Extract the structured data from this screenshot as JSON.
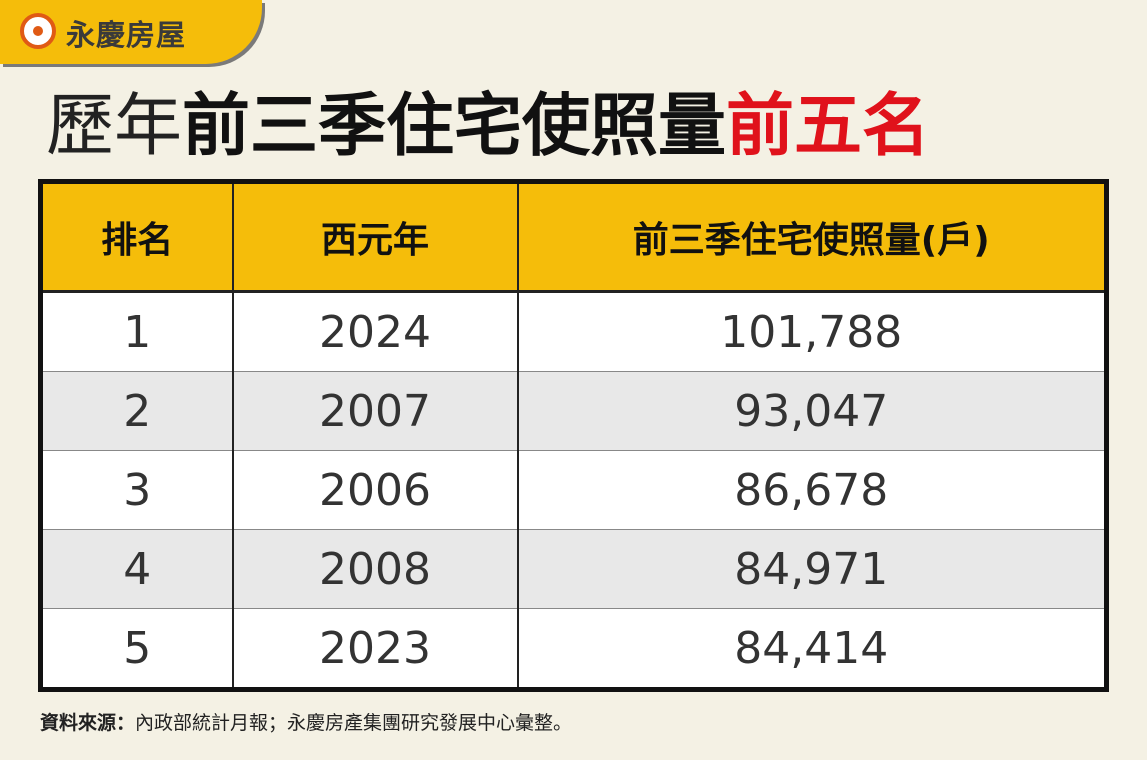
{
  "brand": {
    "name": "永慶房屋",
    "logo_icon": "ring-logo-icon"
  },
  "headline": {
    "part1": "歷年",
    "part2": "前三季住宅使照量",
    "part3": "前五名"
  },
  "colors": {
    "accent": "#f5bd0a",
    "highlight": "#e0121b",
    "logo": "#e05a14"
  },
  "chart_data": {
    "type": "table",
    "title": "歷年前三季住宅使照量前五名",
    "columns": [
      "排名",
      "西元年",
      "前三季住宅使照量(戶)"
    ],
    "rows": [
      [
        "1",
        "2024",
        "101,788"
      ],
      [
        "2",
        "2007",
        "93,047"
      ],
      [
        "3",
        "2006",
        "86,678"
      ],
      [
        "4",
        "2008",
        "84,971"
      ],
      [
        "5",
        "2023",
        "84,414"
      ]
    ]
  },
  "source": {
    "label": "資料來源：",
    "text": "內政部統計月報；永慶房產集團研究發展中心彙整。"
  }
}
